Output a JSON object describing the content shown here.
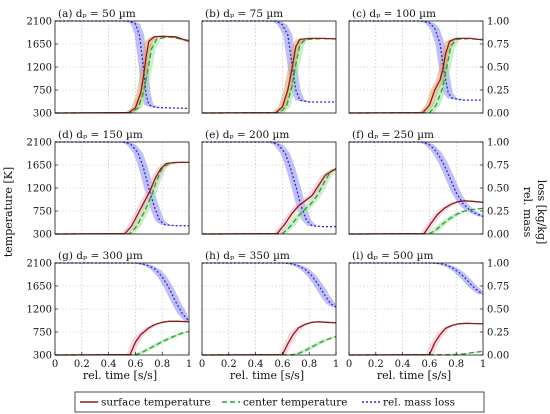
{
  "figure": {
    "y_left_label": "temperature [K]",
    "y_right_label_line1": "rel. mass",
    "y_right_label_line2": "loss [kg/kg]",
    "x_label": "rel. time [s/s]"
  },
  "legend": [
    {
      "key": "surface",
      "label": "surface temperature",
      "color": "#8b1a1a",
      "dash": "none"
    },
    {
      "key": "center",
      "label": "center temperature",
      "color": "#2ca02c",
      "dash": "5,3"
    },
    {
      "key": "mass",
      "label": "rel. mass loss",
      "color": "#2b2bd6",
      "dash": "2,2"
    }
  ],
  "colors": {
    "surface_band": "#f2b8c6",
    "surface_band_brown": "#d9a36a",
    "center_band": "#9fe0a0",
    "mass_band": "#8d8df0"
  },
  "chart_data": [
    {
      "type": "line",
      "title": "(a) dₚ = 50 µm",
      "xlim": [
        0,
        1
      ],
      "ylim": [
        300,
        2100
      ],
      "y2lim": [
        0,
        1
      ],
      "surface": [
        [
          0,
          300
        ],
        [
          0.55,
          305
        ],
        [
          0.6,
          400
        ],
        [
          0.64,
          700
        ],
        [
          0.66,
          1000
        ],
        [
          0.68,
          1400
        ],
        [
          0.7,
          1700
        ],
        [
          0.74,
          1790
        ],
        [
          0.8,
          1800
        ],
        [
          0.9,
          1790
        ],
        [
          1,
          1700
        ]
      ],
      "center": [
        [
          0,
          300
        ],
        [
          0.57,
          305
        ],
        [
          0.62,
          400
        ],
        [
          0.66,
          700
        ],
        [
          0.69,
          1100
        ],
        [
          0.72,
          1550
        ],
        [
          0.76,
          1750
        ],
        [
          0.85,
          1790
        ],
        [
          1,
          1720
        ]
      ],
      "mass": [
        [
          0,
          1
        ],
        [
          0.55,
          1
        ],
        [
          0.6,
          0.97
        ],
        [
          0.63,
          0.85
        ],
        [
          0.66,
          0.5
        ],
        [
          0.68,
          0.2
        ],
        [
          0.7,
          0.09
        ],
        [
          0.75,
          0.06
        ],
        [
          1,
          0.05
        ]
      ]
    },
    {
      "type": "line",
      "title": "(b) dₚ = 75 µm",
      "xlim": [
        0,
        1
      ],
      "ylim": [
        300,
        2100
      ],
      "y2lim": [
        0,
        1
      ],
      "surface": [
        [
          0,
          300
        ],
        [
          0.55,
          305
        ],
        [
          0.6,
          420
        ],
        [
          0.64,
          750
        ],
        [
          0.67,
          1150
        ],
        [
          0.7,
          1600
        ],
        [
          0.73,
          1740
        ],
        [
          0.8,
          1760
        ],
        [
          0.9,
          1760
        ],
        [
          1,
          1750
        ]
      ],
      "center": [
        [
          0,
          300
        ],
        [
          0.58,
          305
        ],
        [
          0.63,
          420
        ],
        [
          0.67,
          800
        ],
        [
          0.7,
          1250
        ],
        [
          0.73,
          1620
        ],
        [
          0.77,
          1740
        ],
        [
          0.9,
          1755
        ],
        [
          1,
          1750
        ]
      ],
      "mass": [
        [
          0,
          1
        ],
        [
          0.55,
          1
        ],
        [
          0.6,
          0.96
        ],
        [
          0.64,
          0.85
        ],
        [
          0.67,
          0.55
        ],
        [
          0.7,
          0.25
        ],
        [
          0.73,
          0.14
        ],
        [
          0.8,
          0.12
        ],
        [
          1,
          0.12
        ]
      ]
    },
    {
      "type": "line",
      "title": "(c) dₚ = 100 µm",
      "xlim": [
        0,
        1
      ],
      "ylim": [
        300,
        2100
      ],
      "y2lim": [
        0,
        1
      ],
      "surface": [
        [
          0,
          300
        ],
        [
          0.55,
          305
        ],
        [
          0.6,
          450
        ],
        [
          0.64,
          750
        ],
        [
          0.68,
          950
        ],
        [
          0.7,
          1150
        ],
        [
          0.72,
          1450
        ],
        [
          0.75,
          1700
        ],
        [
          0.8,
          1760
        ],
        [
          0.9,
          1760
        ],
        [
          1,
          1730
        ]
      ],
      "center": [
        [
          0,
          300
        ],
        [
          0.6,
          305
        ],
        [
          0.65,
          450
        ],
        [
          0.7,
          800
        ],
        [
          0.73,
          1200
        ],
        [
          0.76,
          1600
        ],
        [
          0.8,
          1740
        ],
        [
          0.9,
          1755
        ],
        [
          1,
          1735
        ]
      ],
      "mass": [
        [
          0,
          1
        ],
        [
          0.55,
          1
        ],
        [
          0.6,
          0.98
        ],
        [
          0.64,
          0.92
        ],
        [
          0.68,
          0.75
        ],
        [
          0.71,
          0.45
        ],
        [
          0.74,
          0.22
        ],
        [
          0.77,
          0.16
        ],
        [
          0.85,
          0.14
        ],
        [
          1,
          0.14
        ]
      ]
    },
    {
      "type": "line",
      "title": "(d) dₚ = 150 µm",
      "xlim": [
        0,
        1
      ],
      "ylim": [
        300,
        2100
      ],
      "y2lim": [
        0,
        1
      ],
      "surface": [
        [
          0,
          300
        ],
        [
          0.52,
          305
        ],
        [
          0.57,
          450
        ],
        [
          0.62,
          700
        ],
        [
          0.67,
          950
        ],
        [
          0.71,
          1150
        ],
        [
          0.75,
          1400
        ],
        [
          0.79,
          1580
        ],
        [
          0.83,
          1680
        ],
        [
          0.9,
          1700
        ],
        [
          1,
          1700
        ]
      ],
      "center": [
        [
          0,
          300
        ],
        [
          0.56,
          305
        ],
        [
          0.61,
          450
        ],
        [
          0.67,
          750
        ],
        [
          0.72,
          1050
        ],
        [
          0.76,
          1350
        ],
        [
          0.8,
          1580
        ],
        [
          0.85,
          1680
        ],
        [
          0.92,
          1700
        ],
        [
          1,
          1700
        ]
      ],
      "mass": [
        [
          0,
          1
        ],
        [
          0.52,
          1
        ],
        [
          0.57,
          0.97
        ],
        [
          0.62,
          0.88
        ],
        [
          0.66,
          0.72
        ],
        [
          0.7,
          0.5
        ],
        [
          0.74,
          0.3
        ],
        [
          0.78,
          0.15
        ],
        [
          0.82,
          0.1
        ],
        [
          0.9,
          0.09
        ],
        [
          1,
          0.09
        ]
      ]
    },
    {
      "type": "line",
      "title": "(e) dₚ = 200 µm",
      "xlim": [
        0,
        1
      ],
      "ylim": [
        300,
        2100
      ],
      "y2lim": [
        0,
        1
      ],
      "surface": [
        [
          0,
          300
        ],
        [
          0.56,
          305
        ],
        [
          0.62,
          500
        ],
        [
          0.67,
          700
        ],
        [
          0.72,
          850
        ],
        [
          0.77,
          950
        ],
        [
          0.82,
          1050
        ],
        [
          0.87,
          1250
        ],
        [
          0.92,
          1450
        ],
        [
          1,
          1580
        ]
      ],
      "center": [
        [
          0,
          300
        ],
        [
          0.6,
          305
        ],
        [
          0.66,
          450
        ],
        [
          0.71,
          620
        ],
        [
          0.76,
          760
        ],
        [
          0.81,
          880
        ],
        [
          0.86,
          1050
        ],
        [
          0.91,
          1300
        ],
        [
          0.96,
          1520
        ],
        [
          1,
          1570
        ]
      ],
      "mass": [
        [
          0,
          1
        ],
        [
          0.52,
          1
        ],
        [
          0.57,
          0.97
        ],
        [
          0.62,
          0.88
        ],
        [
          0.66,
          0.72
        ],
        [
          0.7,
          0.52
        ],
        [
          0.74,
          0.3
        ],
        [
          0.78,
          0.15
        ],
        [
          0.82,
          0.09
        ],
        [
          0.9,
          0.08
        ],
        [
          1,
          0.08
        ]
      ]
    },
    {
      "type": "line",
      "title": "(f) dₚ = 250 µm",
      "xlim": [
        0,
        1
      ],
      "ylim": [
        300,
        2100
      ],
      "y2lim": [
        0,
        1
      ],
      "surface": [
        [
          0,
          300
        ],
        [
          0.56,
          305
        ],
        [
          0.61,
          500
        ],
        [
          0.66,
          680
        ],
        [
          0.71,
          800
        ],
        [
          0.76,
          880
        ],
        [
          0.81,
          930
        ],
        [
          0.86,
          950
        ],
        [
          0.92,
          940
        ],
        [
          1,
          920
        ]
      ],
      "center": [
        [
          0,
          300
        ],
        [
          0.6,
          305
        ],
        [
          0.65,
          380
        ],
        [
          0.7,
          500
        ],
        [
          0.75,
          600
        ],
        [
          0.8,
          680
        ],
        [
          0.85,
          740
        ],
        [
          0.9,
          770
        ],
        [
          0.95,
          790
        ],
        [
          1,
          800
        ]
      ],
      "mass": [
        [
          0,
          1
        ],
        [
          0.55,
          1
        ],
        [
          0.6,
          0.97
        ],
        [
          0.65,
          0.9
        ],
        [
          0.7,
          0.78
        ],
        [
          0.75,
          0.62
        ],
        [
          0.8,
          0.45
        ],
        [
          0.85,
          0.33
        ],
        [
          0.9,
          0.26
        ],
        [
          0.95,
          0.22
        ],
        [
          1,
          0.19
        ]
      ]
    },
    {
      "type": "line",
      "title": "(g) dₚ = 300 µm",
      "xlim": [
        0,
        1
      ],
      "ylim": [
        300,
        2100
      ],
      "y2lim": [
        0,
        1
      ],
      "surface": [
        [
          0,
          300
        ],
        [
          0.56,
          305
        ],
        [
          0.6,
          550
        ],
        [
          0.64,
          700
        ],
        [
          0.7,
          830
        ],
        [
          0.75,
          900
        ],
        [
          0.8,
          940
        ],
        [
          0.85,
          960
        ],
        [
          0.92,
          960
        ],
        [
          1,
          950
        ]
      ],
      "center": [
        [
          0,
          300
        ],
        [
          0.6,
          305
        ],
        [
          0.65,
          350
        ],
        [
          0.7,
          420
        ],
        [
          0.75,
          490
        ],
        [
          0.8,
          560
        ],
        [
          0.85,
          620
        ],
        [
          0.9,
          680
        ],
        [
          0.95,
          730
        ],
        [
          1,
          760
        ]
      ],
      "mass": [
        [
          0,
          1
        ],
        [
          0.6,
          1
        ],
        [
          0.65,
          0.99
        ],
        [
          0.7,
          0.97
        ],
        [
          0.75,
          0.93
        ],
        [
          0.8,
          0.85
        ],
        [
          0.85,
          0.73
        ],
        [
          0.9,
          0.58
        ],
        [
          0.95,
          0.45
        ],
        [
          1,
          0.37
        ]
      ]
    },
    {
      "type": "line",
      "title": "(h) dₚ = 350 µm",
      "xlim": [
        0,
        1
      ],
      "ylim": [
        300,
        2100
      ],
      "y2lim": [
        0,
        1
      ],
      "surface": [
        [
          0,
          300
        ],
        [
          0.6,
          305
        ],
        [
          0.64,
          520
        ],
        [
          0.68,
          700
        ],
        [
          0.72,
          830
        ],
        [
          0.77,
          900
        ],
        [
          0.82,
          940
        ],
        [
          0.87,
          950
        ],
        [
          0.93,
          940
        ],
        [
          1,
          930
        ]
      ],
      "center": [
        [
          0,
          300
        ],
        [
          0.68,
          305
        ],
        [
          0.73,
          340
        ],
        [
          0.78,
          400
        ],
        [
          0.83,
          470
        ],
        [
          0.88,
          540
        ],
        [
          0.93,
          600
        ],
        [
          1,
          660
        ]
      ],
      "mass": [
        [
          0,
          1
        ],
        [
          0.62,
          1
        ],
        [
          0.67,
          0.99
        ],
        [
          0.72,
          0.97
        ],
        [
          0.77,
          0.93
        ],
        [
          0.82,
          0.86
        ],
        [
          0.87,
          0.76
        ],
        [
          0.92,
          0.64
        ],
        [
          0.96,
          0.56
        ],
        [
          1,
          0.52
        ]
      ]
    },
    {
      "type": "line",
      "title": "(i) dₚ = 500 µm",
      "xlim": [
        0,
        1
      ],
      "ylim": [
        300,
        2100
      ],
      "y2lim": [
        0,
        1
      ],
      "surface": [
        [
          0,
          300
        ],
        [
          0.6,
          305
        ],
        [
          0.64,
          540
        ],
        [
          0.68,
          700
        ],
        [
          0.72,
          820
        ],
        [
          0.77,
          880
        ],
        [
          0.82,
          910
        ],
        [
          0.88,
          920
        ],
        [
          0.94,
          915
        ],
        [
          1,
          910
        ]
      ],
      "center": [
        [
          0,
          300
        ],
        [
          0.78,
          305
        ],
        [
          0.83,
          315
        ],
        [
          0.88,
          330
        ],
        [
          0.93,
          350
        ],
        [
          1,
          370
        ]
      ],
      "mass": [
        [
          0,
          1
        ],
        [
          0.62,
          1
        ],
        [
          0.67,
          0.995
        ],
        [
          0.72,
          0.98
        ],
        [
          0.77,
          0.95
        ],
        [
          0.82,
          0.9
        ],
        [
          0.87,
          0.83
        ],
        [
          0.92,
          0.75
        ],
        [
          0.96,
          0.7
        ],
        [
          1,
          0.66
        ]
      ]
    }
  ],
  "axes": {
    "y_ticks": [
      "300",
      "750",
      "1200",
      "1650",
      "2100"
    ],
    "y_ticks_second_row": [
      "300",
      "750",
      "1200",
      "1650",
      "2100"
    ],
    "y2_ticks": [
      "0.00",
      "0.25",
      "0.50",
      "0.75",
      "1.00"
    ],
    "x_ticks": [
      "0",
      "0.2",
      "0.4",
      "0.6",
      "0.8",
      "1"
    ]
  }
}
